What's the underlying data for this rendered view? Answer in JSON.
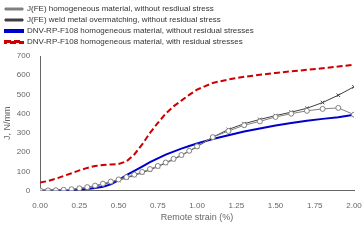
{
  "chart_data": {
    "type": "line",
    "xlabel": "Remote strain (%)",
    "ylabel": "J, N/mm",
    "xlim": [
      0.0,
      2.0
    ],
    "ylim": [
      0,
      700
    ],
    "xticks": [
      {
        "value": 0.0,
        "label": "0.00"
      },
      {
        "value": 0.25,
        "label": "0.25"
      },
      {
        "value": 0.5,
        "label": "0.50"
      },
      {
        "value": 0.75,
        "label": "0.75"
      },
      {
        "value": 1.0,
        "label": "1.00"
      },
      {
        "value": 1.25,
        "label": "1.25"
      },
      {
        "value": 1.5,
        "label": "1.50"
      },
      {
        "value": 1.75,
        "label": "1.75"
      },
      {
        "value": 2.0,
        "label": "2.00"
      }
    ],
    "yticks": [
      0,
      100,
      200,
      300,
      400,
      500,
      600,
      700
    ],
    "grid": false,
    "legend": "upper left",
    "x": [
      0.0,
      0.05,
      0.1,
      0.15,
      0.2,
      0.25,
      0.3,
      0.35,
      0.4,
      0.45,
      0.5,
      0.55,
      0.6,
      0.65,
      0.7,
      0.75,
      0.8,
      0.85,
      0.9,
      0.95,
      1.0,
      1.1,
      1.2,
      1.3,
      1.4,
      1.5,
      1.6,
      1.7,
      1.8,
      1.9,
      2.0
    ],
    "series": [
      {
        "name": "J(FE) homogeneous material, without resdiual stress",
        "color": "#808080",
        "marker": "circle",
        "line_style": "solid",
        "values": [
          0,
          1,
          2,
          4,
          7,
          12,
          18,
          26,
          36,
          47,
          58,
          70,
          83,
          97,
          112,
          128,
          146,
          165,
          185,
          207,
          230,
          278,
          310,
          340,
          360,
          383,
          400,
          415,
          425,
          430,
          395
        ]
      },
      {
        "name": "J(FE) weld metal overmatching, without residual stress",
        "color": "#404040",
        "marker": "x",
        "line_style": "solid",
        "values": [
          0,
          1,
          2,
          4,
          7,
          11,
          17,
          24,
          33,
          43,
          54,
          66,
          79,
          93,
          108,
          125,
          143,
          162,
          183,
          205,
          228,
          278,
          318,
          348,
          370,
          390,
          408,
          428,
          458,
          496,
          540
        ]
      },
      {
        "name": "DNV-RP-F108 homogeneous material, without residual stresses",
        "color": "#0000cc",
        "marker": "none",
        "line_style": "solid",
        "values": [
          0,
          0,
          1,
          2,
          3,
          5,
          8,
          13,
          20,
          32,
          55,
          80,
          102,
          125,
          148,
          168,
          187,
          203,
          218,
          232,
          245,
          268,
          288,
          307,
          323,
          338,
          351,
          363,
          373,
          382,
          395
        ]
      },
      {
        "name": "DNV-RP-F108 homogeneous material, with residual stresses",
        "color": "#cc0000",
        "marker": "none",
        "line_style": "dashed",
        "values": [
          42,
          50,
          62,
          76,
          90,
          105,
          118,
          128,
          133,
          136,
          138,
          152,
          188,
          240,
          300,
          352,
          400,
          438,
          468,
          498,
          525,
          560,
          578,
          592,
          602,
          612,
          620,
          628,
          636,
          645,
          655
        ]
      }
    ]
  }
}
